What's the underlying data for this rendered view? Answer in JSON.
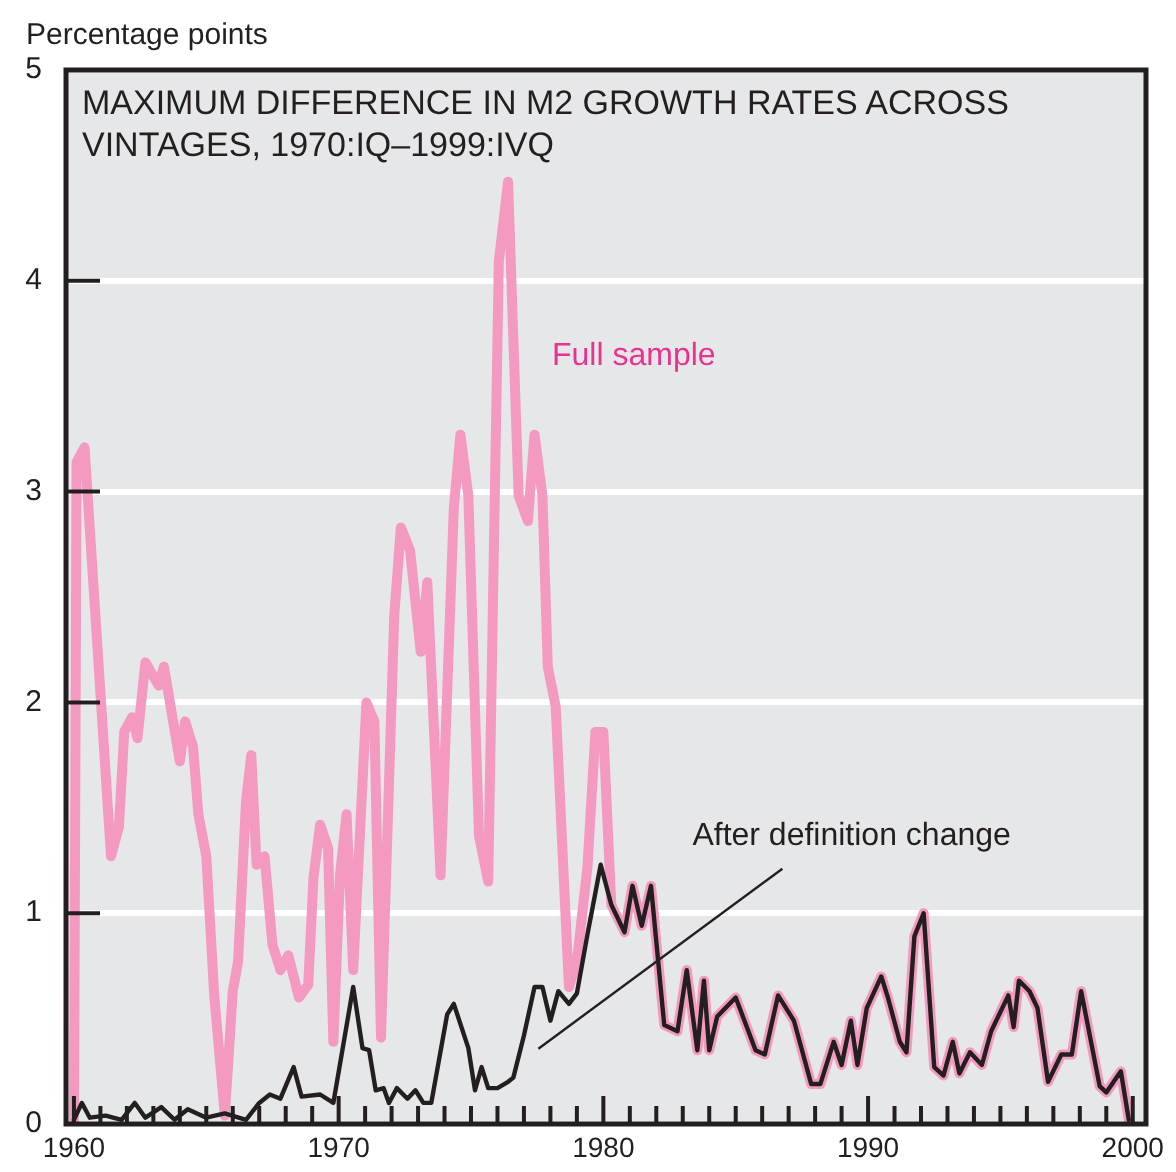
{
  "chart_data": {
    "type": "line",
    "title": "MAXIMUM DIFFERENCE IN M2 GROWTH RATES ACROSS VINTAGES, 1970:IQ–1999:IVQ",
    "ylabel": "Percentage points",
    "xlim": [
      1959.7,
      2000.5
    ],
    "xticks": [
      1960,
      {
        "value": 1961,
        "label": null
      },
      {
        "value": 1962,
        "label": null
      },
      {
        "value": 1963,
        "label": null
      },
      {
        "value": 1964,
        "label": null
      },
      {
        "value": 1965,
        "label": null
      },
      {
        "value": 1966,
        "label": null
      },
      {
        "value": 1967,
        "label": null
      },
      {
        "value": 1968,
        "label": null
      },
      {
        "value": 1969,
        "label": null
      },
      1970,
      {
        "value": 1971,
        "label": null
      },
      {
        "value": 1972,
        "label": null
      },
      {
        "value": 1973,
        "label": null
      },
      {
        "value": 1974,
        "label": null
      },
      {
        "value": 1975,
        "label": null
      },
      {
        "value": 1976,
        "label": null
      },
      {
        "value": 1977,
        "label": null
      },
      {
        "value": 1978,
        "label": null
      },
      {
        "value": 1979,
        "label": null
      },
      1980,
      {
        "value": 1981,
        "label": null
      },
      {
        "value": 1982,
        "label": null
      },
      {
        "value": 1983,
        "label": null
      },
      {
        "value": 1984,
        "label": null
      },
      {
        "value": 1985,
        "label": null
      },
      {
        "value": 1986,
        "label": null
      },
      {
        "value": 1987,
        "label": null
      },
      {
        "value": 1988,
        "label": null
      },
      {
        "value": 1989,
        "label": null
      },
      1990,
      {
        "value": 1991,
        "label": null
      },
      {
        "value": 1992,
        "label": null
      },
      {
        "value": 1993,
        "label": null
      },
      {
        "value": 1994,
        "label": null
      },
      {
        "value": 1995,
        "label": null
      },
      {
        "value": 1996,
        "label": null
      },
      {
        "value": 1997,
        "label": null
      },
      {
        "value": 1998,
        "label": null
      },
      {
        "value": 1999,
        "label": null
      },
      2000
    ],
    "ylim": [
      0,
      5
    ],
    "yticks": [
      0,
      1,
      2,
      3,
      4,
      5
    ],
    "grid": "y",
    "legend": false,
    "marker": "none",
    "line_style": "solid",
    "series": [
      {
        "name": "Full sample",
        "color": "#f49ac1",
        "x": [
          1960.0,
          1960.1,
          1960.4,
          1961.4,
          1961.7,
          1961.9,
          1962.2,
          1962.4,
          1962.7,
          1963.2,
          1963.4,
          1964.0,
          1964.2,
          1964.5,
          1964.7,
          1965.0,
          1965.3,
          1965.7,
          1966.0,
          1966.2,
          1966.5,
          1966.7,
          1966.9,
          1967.2,
          1967.5,
          1967.8,
          1968.1,
          1968.5,
          1968.85,
          1969.05,
          1969.3,
          1969.6,
          1969.8,
          1970.05,
          1970.3,
          1970.55,
          1971.05,
          1971.35,
          1971.6,
          1972.1,
          1972.35,
          1972.7,
          1973.1,
          1973.35,
          1973.85,
          1974.35,
          1974.6,
          1974.9,
          1975.3,
          1975.65,
          1976.05,
          1976.4,
          1976.8,
          1977.15,
          1977.4,
          1977.7,
          1977.9,
          1978.2,
          1978.7,
          1979.0,
          1979.4,
          1979.7,
          1980.0,
          1980.3,
          1980.8,
          1981.1,
          1981.45,
          1981.8,
          1982.3,
          1982.8,
          1983.15,
          1983.55,
          1983.8,
          1984.0,
          1984.3,
          1985.0,
          1985.75,
          1986.1,
          1986.6,
          1987.2,
          1987.85,
          1988.2,
          1988.7,
          1989.0,
          1989.35,
          1989.6,
          1989.95,
          1990.5,
          1990.75,
          1991.2,
          1991.45,
          1991.75,
          1992.1,
          1992.5,
          1992.85,
          1993.2,
          1993.45,
          1993.85,
          1994.3,
          1994.65,
          1995.3,
          1995.5,
          1995.7,
          1996.1,
          1996.4,
          1996.8,
          1997.3,
          1997.7,
          1998.05,
          1998.75,
          1999.0,
          1999.55,
          1999.85
        ],
        "values": [
          0.0,
          3.14,
          3.21,
          1.27,
          1.41,
          1.86,
          1.93,
          1.83,
          2.19,
          2.08,
          2.17,
          1.72,
          1.91,
          1.79,
          1.47,
          1.27,
          0.61,
          0.04,
          0.63,
          0.77,
          1.53,
          1.75,
          1.23,
          1.27,
          0.85,
          0.73,
          0.8,
          0.6,
          0.66,
          1.17,
          1.42,
          1.31,
          0.39,
          1.18,
          1.47,
          0.73,
          2.0,
          1.91,
          0.41,
          2.41,
          2.83,
          2.72,
          2.24,
          2.57,
          1.18,
          2.92,
          3.27,
          2.98,
          1.37,
          1.15,
          4.09,
          4.47,
          2.98,
          2.86,
          3.27,
          2.98,
          2.17,
          1.98,
          0.65,
          0.77,
          1.22,
          1.86,
          1.86,
          1.04,
          0.91,
          1.13,
          0.94,
          1.13,
          0.47,
          0.44,
          0.73,
          0.35,
          0.68,
          0.35,
          0.51,
          0.6,
          0.35,
          0.33,
          0.61,
          0.49,
          0.19,
          0.19,
          0.39,
          0.28,
          0.49,
          0.28,
          0.55,
          0.7,
          0.6,
          0.39,
          0.34,
          0.89,
          1.0,
          0.27,
          0.23,
          0.39,
          0.24,
          0.34,
          0.28,
          0.44,
          0.61,
          0.46,
          0.68,
          0.63,
          0.55,
          0.2,
          0.33,
          0.33,
          0.63,
          0.18,
          0.15,
          0.25,
          0.02
        ]
      },
      {
        "name": "After definition change",
        "color": "#231f20",
        "x": [
          1960.0,
          1960.3,
          1960.6,
          1961.2,
          1961.8,
          1962.3,
          1962.7,
          1963.3,
          1963.8,
          1964.3,
          1965.0,
          1965.7,
          1966.5,
          1967.0,
          1967.4,
          1967.8,
          1968.3,
          1968.6,
          1969.3,
          1969.8,
          1970.55,
          1970.9,
          1971.15,
          1971.4,
          1971.7,
          1971.9,
          1972.2,
          1972.6,
          1972.9,
          1973.2,
          1973.5,
          1974.1,
          1974.35,
          1974.9,
          1975.15,
          1975.4,
          1975.65,
          1976.0,
          1976.4,
          1976.6,
          1977.0,
          1977.4,
          1977.7,
          1978.0,
          1978.3,
          1978.7,
          1979.0,
          1979.4,
          1979.9,
          1980.3,
          1980.8,
          1981.1,
          1981.45,
          1981.8,
          1982.3,
          1982.8,
          1983.15,
          1983.55,
          1983.8,
          1984.0,
          1984.3,
          1985.0,
          1985.75,
          1986.1,
          1986.6,
          1987.2,
          1987.85,
          1988.2,
          1988.7,
          1989.0,
          1989.35,
          1989.6,
          1989.95,
          1990.5,
          1990.75,
          1991.2,
          1991.45,
          1991.75,
          1992.1,
          1992.5,
          1992.85,
          1993.2,
          1993.45,
          1993.85,
          1994.3,
          1994.65,
          1995.3,
          1995.5,
          1995.7,
          1996.1,
          1996.4,
          1996.8,
          1997.3,
          1997.7,
          1998.05,
          1998.75,
          1999.0,
          1999.55,
          1999.85
        ],
        "values": [
          0.02,
          0.1,
          0.03,
          0.04,
          0.02,
          0.1,
          0.03,
          0.08,
          0.02,
          0.07,
          0.03,
          0.05,
          0.02,
          0.1,
          0.14,
          0.12,
          0.27,
          0.13,
          0.14,
          0.1,
          0.65,
          0.36,
          0.35,
          0.16,
          0.17,
          0.1,
          0.17,
          0.12,
          0.16,
          0.1,
          0.1,
          0.52,
          0.57,
          0.36,
          0.16,
          0.27,
          0.17,
          0.17,
          0.2,
          0.22,
          0.42,
          0.65,
          0.65,
          0.49,
          0.63,
          0.57,
          0.62,
          0.9,
          1.23,
          1.04,
          0.91,
          1.13,
          0.94,
          1.13,
          0.47,
          0.44,
          0.73,
          0.35,
          0.68,
          0.35,
          0.51,
          0.6,
          0.35,
          0.33,
          0.61,
          0.49,
          0.19,
          0.19,
          0.39,
          0.28,
          0.49,
          0.28,
          0.55,
          0.7,
          0.6,
          0.39,
          0.34,
          0.89,
          1.0,
          0.27,
          0.23,
          0.39,
          0.24,
          0.34,
          0.28,
          0.44,
          0.61,
          0.46,
          0.68,
          0.63,
          0.55,
          0.2,
          0.33,
          0.33,
          0.63,
          0.18,
          0.15,
          0.25,
          0.02
        ]
      }
    ]
  }
}
